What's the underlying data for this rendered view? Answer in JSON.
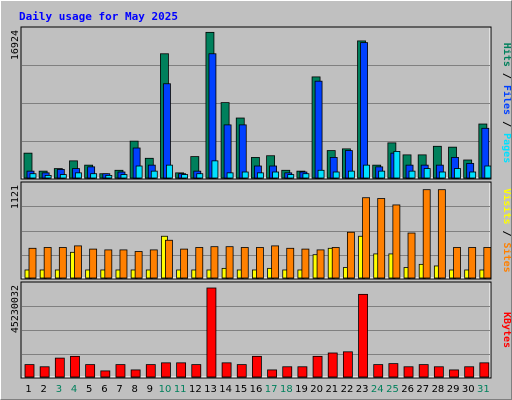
{
  "title": "Daily usage for May 2025",
  "colors": {
    "hits": "#00805c",
    "files": "#0040ff",
    "pages": "#00e0ff",
    "visits": "#ffff00",
    "sites": "#ff8000",
    "kbytes": "#ff0000",
    "title": "#0000ff",
    "weekend": "#00805c"
  },
  "chart_data": [
    {
      "type": "bar",
      "title": "Daily usage for May 2025",
      "ymax_label": "16924",
      "ylim": [
        0,
        16924
      ],
      "categories": [
        "1",
        "2",
        "3",
        "4",
        "5",
        "6",
        "7",
        "8",
        "9",
        "10",
        "11",
        "12",
        "13",
        "14",
        "15",
        "16",
        "17",
        "18",
        "19",
        "20",
        "21",
        "22",
        "23",
        "24",
        "25",
        "26",
        "27",
        "28",
        "29",
        "30",
        "31"
      ],
      "weekend_days": [
        "3",
        "4",
        "10",
        "11",
        "17",
        "18",
        "24",
        "25",
        "31"
      ],
      "legend": [
        "Hits",
        "Files",
        "Pages"
      ],
      "series": [
        {
          "name": "Hits",
          "values": [
            2900,
            800,
            1100,
            2000,
            1500,
            500,
            900,
            4300,
            2300,
            14500,
            600,
            2500,
            17000,
            8800,
            7000,
            2400,
            2600,
            900,
            800,
            11800,
            3200,
            3400,
            16000,
            1500,
            4100,
            2700,
            2700,
            3700,
            3600,
            2100,
            6300
          ]
        },
        {
          "name": "Files",
          "values": [
            800,
            600,
            1000,
            1100,
            1300,
            500,
            700,
            3500,
            1500,
            11000,
            500,
            800,
            14500,
            6200,
            6200,
            1400,
            1400,
            600,
            700,
            11300,
            2400,
            3200,
            15800,
            1300,
            2900,
            1500,
            1500,
            1500,
            2400,
            1700,
            5800
          ]
        },
        {
          "name": "Pages",
          "values": [
            500,
            300,
            400,
            600,
            500,
            300,
            400,
            1400,
            800,
            1500,
            400,
            500,
            2000,
            600,
            700,
            600,
            700,
            400,
            500,
            900,
            700,
            800,
            1500,
            800,
            3100,
            800,
            1100,
            700,
            1100,
            700,
            1400
          ]
        }
      ]
    },
    {
      "type": "bar",
      "ymax_label": "1121",
      "ylim": [
        0,
        1121
      ],
      "categories": [
        "1",
        "2",
        "3",
        "4",
        "5",
        "6",
        "7",
        "8",
        "9",
        "10",
        "11",
        "12",
        "13",
        "14",
        "15",
        "16",
        "17",
        "18",
        "19",
        "20",
        "21",
        "22",
        "23",
        "24",
        "25",
        "26",
        "27",
        "28",
        "29",
        "30",
        "31"
      ],
      "legend": [
        "Sites",
        "Visits"
      ],
      "series": [
        {
          "name": "Visits",
          "values": [
            100,
            100,
            100,
            320,
            100,
            100,
            100,
            100,
            100,
            520,
            100,
            100,
            100,
            120,
            100,
            100,
            120,
            100,
            100,
            290,
            370,
            130,
            520,
            300,
            300,
            130,
            170,
            150,
            100,
            100,
            100
          ]
        },
        {
          "name": "Sites",
          "values": [
            370,
            380,
            380,
            400,
            360,
            350,
            350,
            330,
            350,
            470,
            360,
            380,
            390,
            390,
            380,
            380,
            400,
            370,
            360,
            350,
            380,
            570,
            1000,
            990,
            910,
            560,
            1100,
            1100,
            380,
            380,
            380
          ]
        }
      ]
    },
    {
      "type": "bar",
      "ymax_label": "45230032",
      "ylim": [
        0,
        45230032
      ],
      "categories": [
        "1",
        "2",
        "3",
        "4",
        "5",
        "6",
        "7",
        "8",
        "9",
        "10",
        "11",
        "12",
        "13",
        "14",
        "15",
        "16",
        "17",
        "18",
        "19",
        "20",
        "21",
        "22",
        "23",
        "24",
        "25",
        "26",
        "27",
        "28",
        "29",
        "30",
        "31"
      ],
      "legend": [
        "KBytes"
      ],
      "series": [
        {
          "name": "KBytes",
          "values": [
            6300000,
            5200000,
            9600000,
            10500000,
            6300000,
            3100000,
            6300000,
            3600000,
            6300000,
            7200000,
            7200000,
            6300000,
            45230032,
            7200000,
            6300000,
            10500000,
            3600000,
            5200000,
            5200000,
            10500000,
            12200000,
            12800000,
            42000000,
            6300000,
            6800000,
            5200000,
            6300000,
            5200000,
            3600000,
            5200000,
            7200000
          ]
        }
      ]
    }
  ]
}
